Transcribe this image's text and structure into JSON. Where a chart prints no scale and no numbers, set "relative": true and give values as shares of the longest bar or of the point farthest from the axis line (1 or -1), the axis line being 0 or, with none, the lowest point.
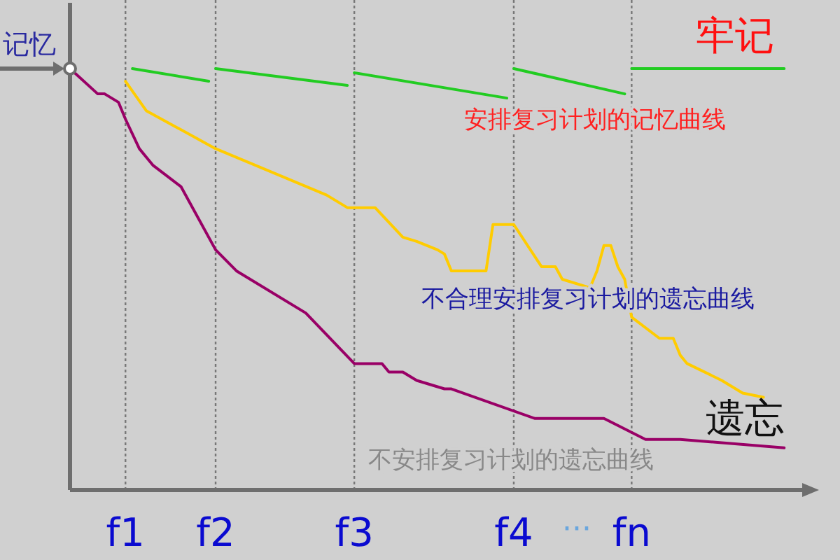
{
  "chart_data": {
    "type": "line",
    "relative": true,
    "ylabel": "记忆",
    "grid": "x",
    "categories": [
      null,
      null,
      null,
      null,
      null,
      null,
      null,
      null,
      "f1",
      null,
      null,
      null,
      null,
      null,
      null,
      null,
      null,
      null,
      null,
      null,
      null,
      "f2",
      null,
      null,
      null,
      null,
      null,
      null,
      null,
      null,
      null,
      null,
      null,
      null,
      null,
      null,
      null,
      null,
      null,
      null,
      null,
      "f3",
      null,
      null,
      null,
      null,
      null,
      null,
      null,
      null,
      null,
      null,
      null,
      null,
      null,
      null,
      null,
      null,
      null,
      null,
      null,
      null,
      null,
      null,
      "f4",
      null,
      null,
      null,
      null,
      null,
      null,
      null,
      null,
      null,
      null,
      null,
      null,
      null,
      null,
      null,
      null,
      "fn",
      null,
      null,
      null,
      null,
      null,
      null,
      null,
      null,
      null,
      null,
      null,
      null,
      null,
      null,
      null,
      null,
      null,
      null,
      null,
      null,
      null,
      null,
      null,
      null
    ],
    "annotations": [
      "牢记",
      "遗忘",
      "···"
    ],
    "series": [
      {
        "color": "#22cc22",
        "values": [
          null,
          null,
          null,
          null,
          null,
          null,
          null,
          null,
          null,
          1.0,
          null,
          null,
          null,
          null,
          null,
          null,
          null,
          null,
          null,
          null,
          0.97,
          null,
          null,
          null,
          null,
          null,
          null,
          null,
          null,
          null,
          null,
          null,
          null,
          null,
          null,
          null,
          null,
          null,
          null,
          null,
          null,
          null,
          null,
          null,
          null,
          null,
          null,
          null,
          null,
          null,
          null,
          null,
          null,
          null,
          null,
          null,
          null,
          null,
          null,
          null,
          null,
          null,
          null,
          null,
          null,
          null,
          null,
          null,
          null,
          null,
          null,
          null,
          null,
          null,
          null,
          null,
          null,
          null,
          null,
          null,
          null,
          null,
          null,
          null,
          null,
          null,
          null,
          null,
          null,
          null,
          null,
          null,
          null,
          null,
          null,
          null,
          null,
          null,
          null,
          null,
          null,
          null,
          null,
          null,
          null,
          null
        ]
      },
      {
        "color": "#22cc22",
        "values": [
          null,
          null,
          null,
          null,
          null,
          null,
          null,
          null,
          null,
          null,
          null,
          null,
          null,
          null,
          null,
          null,
          null,
          null,
          null,
          null,
          null,
          1.0,
          null,
          null,
          null,
          null,
          null,
          null,
          null,
          null,
          null,
          null,
          null,
          null,
          null,
          null,
          null,
          null,
          null,
          null,
          0.96,
          null,
          null,
          null,
          null,
          null,
          null,
          null,
          null,
          null,
          null,
          null,
          null,
          null,
          null,
          null,
          null,
          null,
          null,
          null,
          null,
          null,
          null,
          null,
          null,
          null,
          null,
          null,
          null,
          null,
          null,
          null,
          null,
          null,
          null,
          null,
          null,
          null,
          null,
          null,
          null,
          null,
          null,
          null,
          null,
          null,
          null,
          null,
          null,
          null,
          null,
          null,
          null,
          null,
          null,
          null,
          null,
          null,
          null,
          null,
          null,
          null,
          null,
          null,
          null,
          null
        ]
      },
      {
        "name": "安排复习计划的记忆曲线",
        "color": "#22cc22",
        "values": [
          null,
          null,
          null,
          null,
          null,
          null,
          null,
          null,
          null,
          null,
          null,
          null,
          null,
          null,
          null,
          null,
          null,
          null,
          null,
          null,
          null,
          null,
          null,
          null,
          null,
          null,
          null,
          null,
          null,
          null,
          null,
          null,
          null,
          null,
          null,
          null,
          null,
          null,
          null,
          null,
          null,
          0.99,
          null,
          null,
          null,
          null,
          null,
          null,
          null,
          null,
          null,
          null,
          null,
          null,
          null,
          null,
          null,
          null,
          null,
          null,
          null,
          null,
          null,
          0.93,
          null,
          null,
          null,
          null,
          null,
          null,
          null,
          null,
          null,
          null,
          null,
          null,
          null,
          null,
          null,
          null,
          null,
          null,
          null,
          null,
          null,
          null,
          null,
          null,
          null,
          null,
          null,
          null,
          null,
          null,
          null,
          null,
          null,
          null,
          null,
          null,
          null,
          null,
          null,
          null,
          null,
          null
        ]
      },
      {
        "color": "#22cc22",
        "values": [
          null,
          null,
          null,
          null,
          null,
          null,
          null,
          null,
          null,
          null,
          null,
          null,
          null,
          null,
          null,
          null,
          null,
          null,
          null,
          null,
          null,
          null,
          null,
          null,
          null,
          null,
          null,
          null,
          null,
          null,
          null,
          null,
          null,
          null,
          null,
          null,
          null,
          null,
          null,
          null,
          null,
          null,
          null,
          null,
          null,
          null,
          null,
          null,
          null,
          null,
          null,
          null,
          null,
          null,
          null,
          null,
          null,
          null,
          null,
          null,
          null,
          null,
          null,
          null,
          1.0,
          null,
          null,
          null,
          null,
          null,
          null,
          null,
          null,
          null,
          null,
          null,
          null,
          null,
          null,
          null,
          0.94,
          null,
          null,
          null,
          null,
          null,
          null,
          null,
          null,
          null,
          null,
          null,
          null,
          null,
          null,
          null,
          null,
          null,
          null,
          null,
          null,
          null,
          null,
          null,
          null,
          null
        ]
      },
      {
        "color": "#22cc22",
        "values": [
          null,
          null,
          null,
          null,
          null,
          null,
          null,
          null,
          null,
          null,
          null,
          null,
          null,
          null,
          null,
          null,
          null,
          null,
          null,
          null,
          null,
          null,
          null,
          null,
          null,
          null,
          null,
          null,
          null,
          null,
          null,
          null,
          null,
          null,
          null,
          null,
          null,
          null,
          null,
          null,
          null,
          null,
          null,
          null,
          null,
          null,
          null,
          null,
          null,
          null,
          null,
          null,
          null,
          null,
          null,
          null,
          null,
          null,
          null,
          null,
          null,
          null,
          null,
          null,
          null,
          null,
          null,
          null,
          null,
          null,
          null,
          null,
          null,
          null,
          null,
          null,
          null,
          null,
          null,
          null,
          null,
          1.0,
          null,
          null,
          null,
          null,
          null,
          null,
          null,
          null,
          null,
          null,
          null,
          null,
          null,
          null,
          null,
          null,
          null,
          null,
          null,
          null,
          null,
          1.0,
          null,
          null
        ]
      },
      {
        "name": "不合理安排复习计划的遗忘曲线",
        "color": "#ffcc00",
        "values": [
          null,
          null,
          null,
          null,
          null,
          null,
          null,
          null,
          0.97,
          null,
          null,
          0.9,
          null,
          null,
          null,
          null,
          null,
          null,
          null,
          null,
          null,
          0.81,
          null,
          null,
          null,
          null,
          null,
          null,
          null,
          null,
          null,
          null,
          null,
          null,
          null,
          null,
          null,
          0.7,
          null,
          null,
          0.67,
          null,
          null,
          null,
          0.67,
          null,
          null,
          null,
          0.6,
          null,
          0.59,
          null,
          null,
          0.57,
          0.56,
          0.52,
          null,
          null,
          null,
          null,
          0.52,
          0.63,
          null,
          null,
          0.63,
          null,
          null,
          null,
          0.53,
          null,
          0.53,
          0.5,
          null,
          null,
          null,
          0.48,
          0.52,
          0.58,
          0.58,
          0.53,
          0.5,
          0.41,
          null,
          null,
          null,
          0.36,
          null,
          0.36,
          0.32,
          0.3,
          null,
          null,
          null,
          null,
          0.26,
          null,
          null,
          0.23,
          null,
          null,
          0.22,
          null,
          null,
          null,
          null,
          null
        ]
      },
      {
        "name": "不安排复习计划的遗忘曲线",
        "color": "#990066",
        "values": [
          1.0,
          null,
          null,
          null,
          0.94,
          0.94,
          null,
          0.92,
          0.88,
          null,
          0.81,
          0.79,
          0.77,
          null,
          null,
          null,
          0.72,
          null,
          null,
          null,
          null,
          0.57,
          null,
          null,
          0.52,
          null,
          null,
          null,
          null,
          null,
          null,
          null,
          null,
          null,
          0.42,
          null,
          null,
          null,
          null,
          null,
          null,
          0.3,
          null,
          null,
          null,
          0.3,
          0.28,
          null,
          0.28,
          null,
          0.26,
          null,
          null,
          null,
          0.24,
          0.24,
          null,
          null,
          null,
          null,
          null,
          null,
          null,
          null,
          null,
          null,
          null,
          0.17,
          null,
          null,
          null,
          null,
          null,
          null,
          null,
          null,
          null,
          0.17,
          null,
          null,
          null,
          null,
          null,
          0.12,
          null,
          null,
          null,
          null,
          0.12,
          null,
          null,
          null,
          null,
          null,
          null,
          null,
          null,
          null,
          null,
          null,
          null,
          null,
          null,
          0.1,
          null,
          null
        ]
      }
    ]
  }
}
